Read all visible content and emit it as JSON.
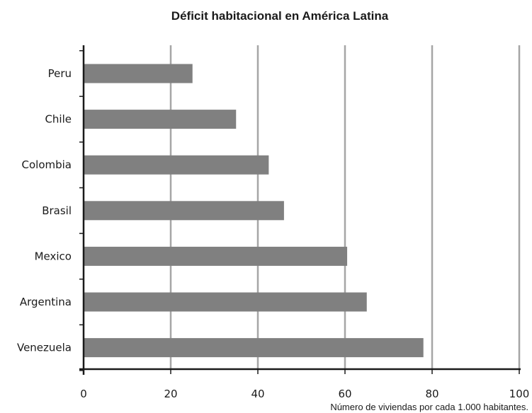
{
  "chart_data": {
    "type": "bar",
    "orientation": "horizontal",
    "title": "Déficit habitacional en América Latina",
    "xlabel": "Número de viviendas por cada 1.000 habitantes.",
    "ylabel": "",
    "categories": [
      "Peru",
      "Chile",
      "Colombia",
      "Brasil",
      "Mexico",
      "Argentina",
      "Venezuela"
    ],
    "values": [
      25,
      35,
      42.5,
      46,
      60.5,
      65,
      78
    ],
    "xlim": [
      0,
      100
    ],
    "xticks": [
      0,
      20,
      40,
      60,
      80,
      100
    ],
    "grid": true,
    "bar_color": "#808080",
    "grid_color": "#a6a6a6",
    "axis_color": "#1a1a1a"
  }
}
